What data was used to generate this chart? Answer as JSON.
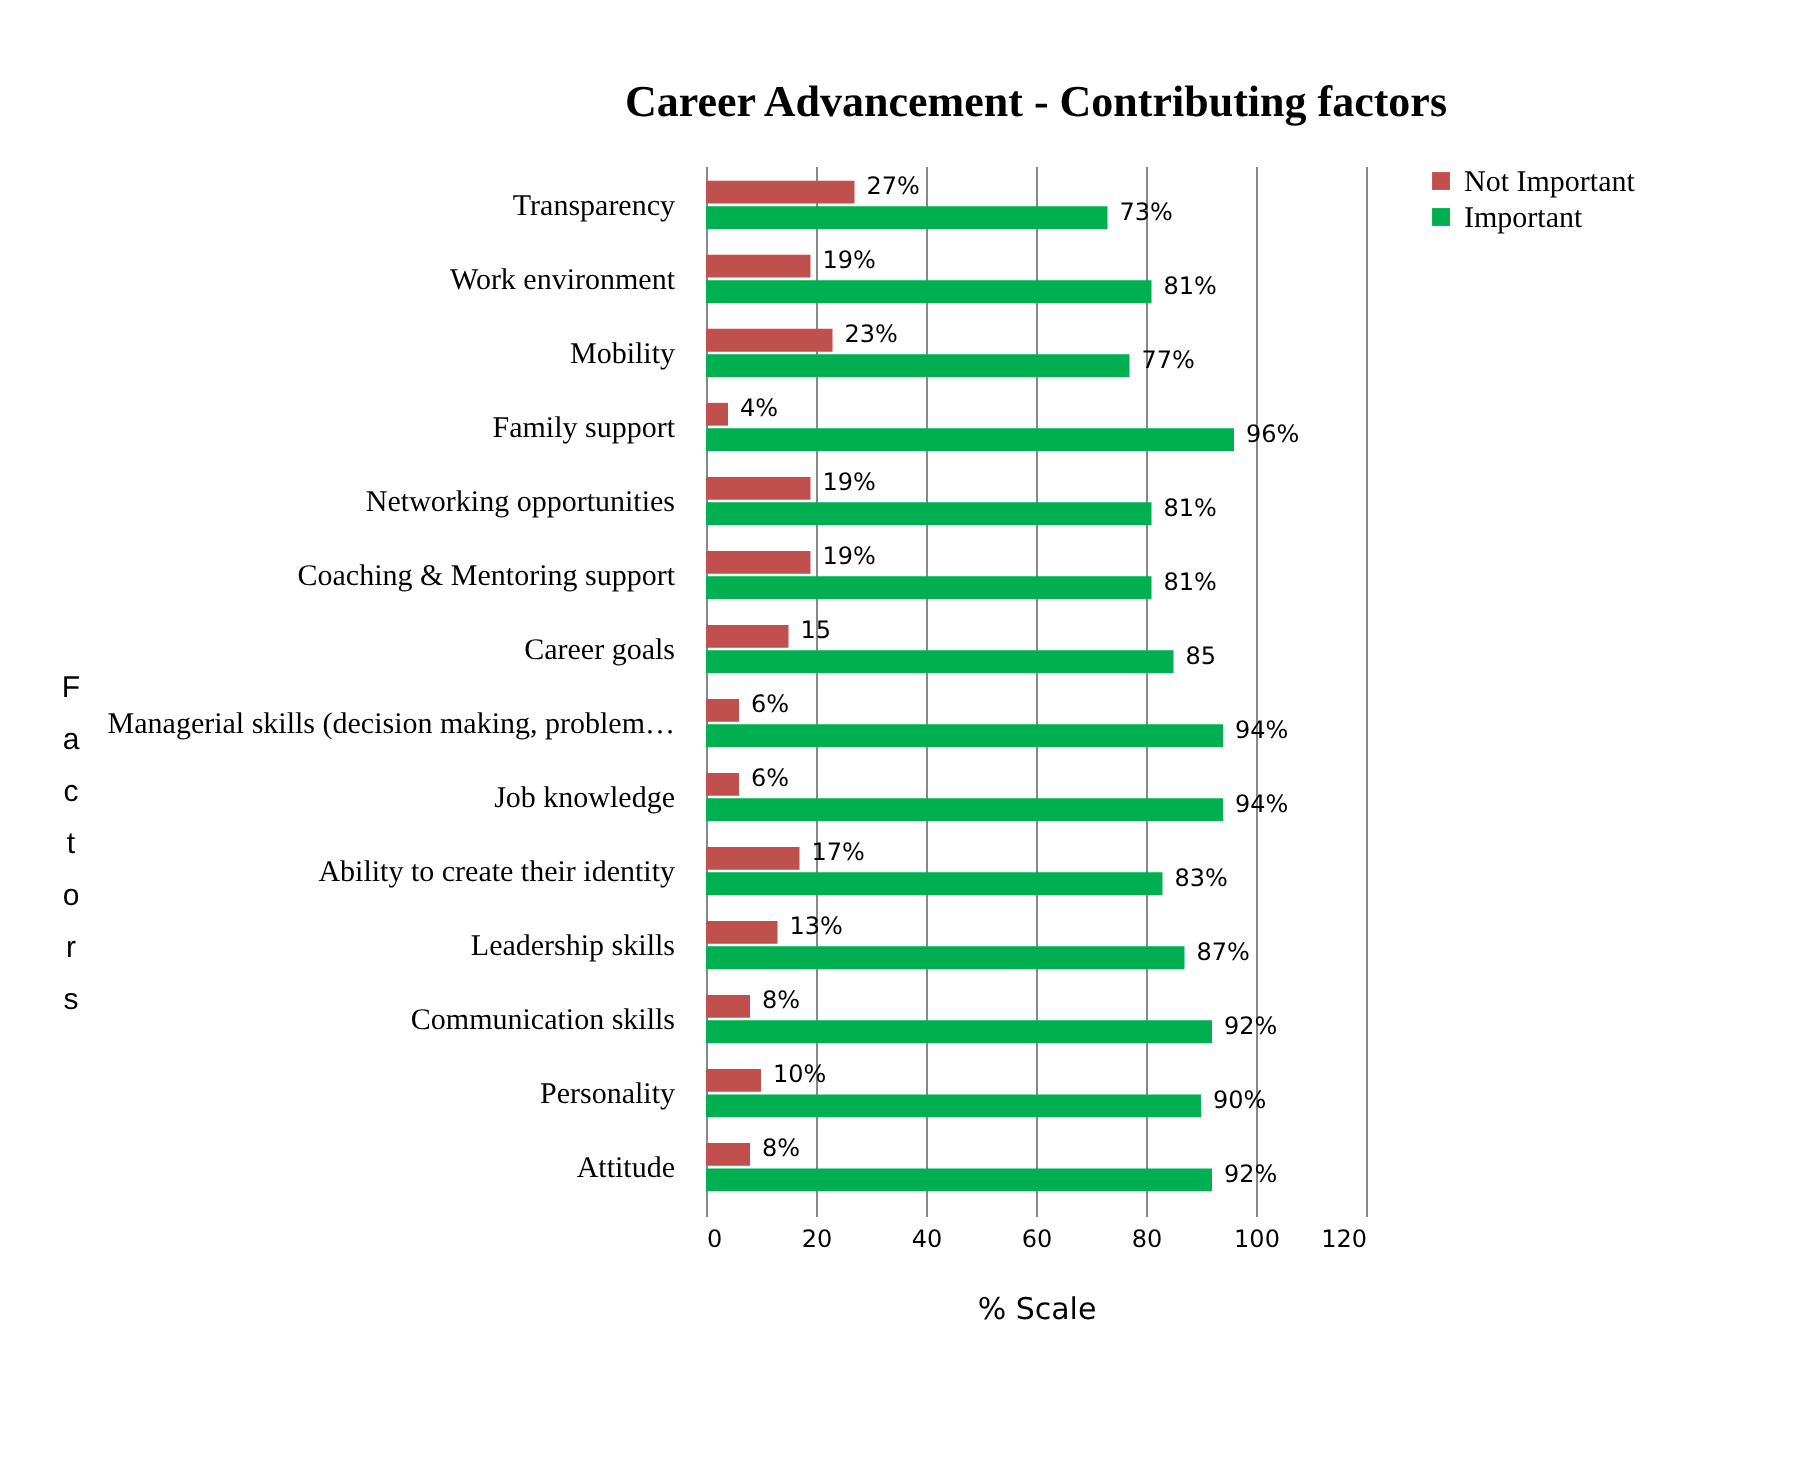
{
  "chart_data": {
    "type": "bar",
    "orientation": "horizontal",
    "title": "Career Advancement - Contributing factors",
    "xlabel": "% Scale",
    "ylabel": "Factors",
    "categories": [
      "Transparency",
      "Work environment",
      "Mobility",
      "Family support",
      "Networking opportunities",
      "Coaching & Mentoring support",
      "Career goals",
      "Managerial skills (decision making, problem…",
      "Job knowledge",
      "Ability to create their identity",
      "Leadership skills",
      "Communication skills",
      "Personality",
      "Attitude"
    ],
    "series": [
      {
        "name": "Not Important",
        "color": "#c0504d",
        "values": [
          27,
          19,
          23,
          4,
          19,
          19,
          15,
          6,
          6,
          17,
          13,
          8,
          10,
          8
        ],
        "value_labels": [
          "27%",
          "19%",
          "23%",
          "4%",
          "19%",
          "19%",
          "15",
          "6%",
          "6%",
          "17%",
          "13%",
          "8%",
          "10%",
          "8%"
        ]
      },
      {
        "name": "Important",
        "color": "#00b050",
        "values": [
          73,
          81,
          77,
          96,
          81,
          81,
          85,
          94,
          94,
          83,
          87,
          92,
          90,
          92
        ],
        "value_labels": [
          "73%",
          "81%",
          "77%",
          "96%",
          "81%",
          "81%",
          "85",
          "94%",
          "94%",
          "83%",
          "87%",
          "92%",
          "90%",
          "92%"
        ]
      }
    ],
    "xlim": [
      0,
      120
    ],
    "xticks": [
      0,
      20,
      40,
      60,
      80,
      100,
      120
    ],
    "grid": "x",
    "legend": "right"
  }
}
